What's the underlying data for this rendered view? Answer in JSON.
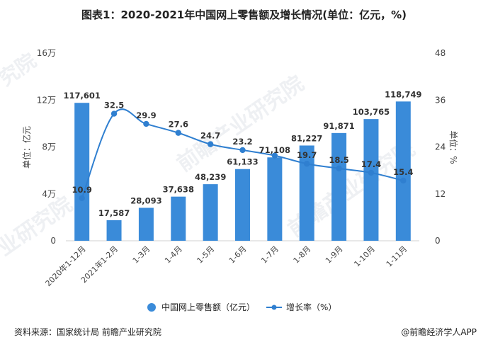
{
  "chart_data": {
    "type": "bar",
    "title": "图表1：2020-2021年中国网上零售额及增长情况(单位：亿元，%)",
    "categories": [
      "2020年1-12月",
      "2021年1-2月",
      "1-3月",
      "1-4月",
      "1-5月",
      "1-6月",
      "1-7月",
      "1-8月",
      "1-9月",
      "1-10月",
      "1-11月"
    ],
    "series": [
      {
        "name": "中国网上零售额（亿元）",
        "type": "bar",
        "axis": "left",
        "values": [
          117601,
          17587,
          28093,
          37638,
          48239,
          61133,
          71108,
          81227,
          91871,
          103765,
          118749
        ],
        "labels": [
          "117,601",
          "17,587",
          "28,093",
          "37,638",
          "48,239",
          "61,133",
          "71,108",
          "81,227",
          "91,871",
          "103,765",
          "118,749"
        ]
      },
      {
        "name": "增长率（%）",
        "type": "line",
        "axis": "right",
        "values": [
          10.9,
          32.5,
          29.9,
          27.6,
          24.7,
          23.2,
          21.8,
          19.7,
          18.5,
          17.4,
          15.4
        ],
        "labels": [
          "10.9",
          "32.5",
          "29.9",
          "27.6",
          "24.7",
          "23.2",
          "",
          "19.7",
          "18.5",
          "17.4",
          "15.4"
        ]
      }
    ],
    "y_left": {
      "label": "单位：亿元",
      "ylim": [
        0,
        160000
      ],
      "ticks": [
        0,
        40000,
        80000,
        120000,
        160000
      ],
      "tick_labels": [
        "0",
        "4万",
        "8万",
        "12万",
        "16万"
      ]
    },
    "y_right": {
      "label": "单位：%",
      "ylim": [
        0,
        48
      ],
      "ticks": [
        0,
        12,
        24,
        36,
        48
      ],
      "tick_labels": [
        "0",
        "12",
        "24",
        "36",
        "48"
      ]
    },
    "legend": [
      "中国网上零售额（亿元）",
      "增长率（%）"
    ],
    "legend_position": "bottom",
    "colors": {
      "bar": "#3a8bd9",
      "line": "#2f7fd0",
      "axis_text": "#444444",
      "grid": "#e5e5e5"
    }
  },
  "footer": {
    "source": "资料来源：国家统计局 前瞻产业研究院",
    "credit": "@前瞻经济学人APP"
  },
  "watermark": {
    "text": "前瞻产业研究院",
    "short": "究院",
    "short2": "业研究院"
  }
}
